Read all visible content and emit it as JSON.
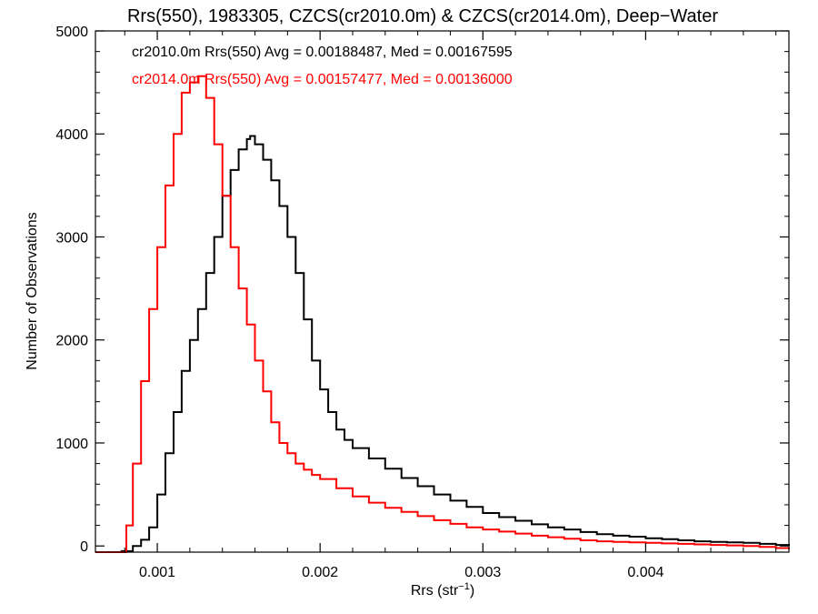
{
  "chart_data": {
    "type": "line",
    "title": "Rrs(550), 1983305, CZCS(cr2010.0m) & CZCS(cr2014.0m), Deep−Water",
    "xlabel": {
      "base": "Rrs (str",
      "sup": "−1",
      "close": ")"
    },
    "ylabel": "Number of Observations",
    "xlim": [
      0.00062,
      0.00488
    ],
    "ylim": [
      -60,
      5000
    ],
    "grid": false,
    "x_ticks": [
      {
        "value": 0.001,
        "label": "0.001"
      },
      {
        "value": 0.002,
        "label": "0.002"
      },
      {
        "value": 0.003,
        "label": "0.003"
      },
      {
        "value": 0.004,
        "label": "0.004"
      }
    ],
    "y_ticks": [
      {
        "value": 0,
        "label": "0"
      },
      {
        "value": 1000,
        "label": "1000"
      },
      {
        "value": 2000,
        "label": "2000"
      },
      {
        "value": 3000,
        "label": "3000"
      },
      {
        "value": 4000,
        "label": "4000"
      },
      {
        "value": 5000,
        "label": "5000"
      }
    ],
    "annotations": [
      {
        "text": "cr2010.0m Rrs(550) Avg = 0.00188487, Med = 0.00167595",
        "color": "#000000"
      },
      {
        "text": "cr2014.0m Rrs(550) Avg = 0.00157477, Med = 0.00136000",
        "color": "#ff0000"
      }
    ],
    "series": [
      {
        "color": "#000000",
        "x": [
          0.00062,
          0.00078,
          0.00085,
          0.0009,
          0.00095,
          0.001,
          0.00105,
          0.0011,
          0.00115,
          0.0012,
          0.00125,
          0.0013,
          0.00135,
          0.0014,
          0.00145,
          0.0015,
          0.00155,
          0.00157,
          0.0016,
          0.00165,
          0.0017,
          0.00175,
          0.0018,
          0.00185,
          0.0019,
          0.00195,
          0.002,
          0.00205,
          0.0021,
          0.00215,
          0.0022,
          0.0023,
          0.0024,
          0.0025,
          0.0026,
          0.0027,
          0.0028,
          0.0029,
          0.003,
          0.0031,
          0.0032,
          0.0033,
          0.0034,
          0.0035,
          0.0036,
          0.0037,
          0.0038,
          0.0039,
          0.004,
          0.0041,
          0.0042,
          0.0043,
          0.0044,
          0.0045,
          0.0046,
          0.0047,
          0.0048,
          0.00488
        ],
        "y": [
          -60,
          -50,
          0,
          60,
          180,
          500,
          900,
          1300,
          1700,
          2000,
          2300,
          2650,
          3000,
          3400,
          3650,
          3850,
          3950,
          3980,
          3900,
          3750,
          3550,
          3300,
          3000,
          2650,
          2200,
          1800,
          1520,
          1300,
          1130,
          1030,
          950,
          850,
          750,
          660,
          580,
          500,
          440,
          380,
          320,
          280,
          245,
          210,
          180,
          160,
          135,
          115,
          100,
          90,
          75,
          65,
          55,
          45,
          40,
          35,
          30,
          20,
          10,
          0
        ]
      },
      {
        "color": "#ff0000",
        "x": [
          0.00062,
          0.00075,
          0.00079,
          0.00081,
          0.00085,
          0.0009,
          0.00095,
          0.001,
          0.00105,
          0.0011,
          0.00115,
          0.0012,
          0.00125,
          0.0013,
          0.00135,
          0.0014,
          0.00145,
          0.0015,
          0.00155,
          0.0016,
          0.00165,
          0.0017,
          0.00175,
          0.0018,
          0.00185,
          0.0019,
          0.00195,
          0.002,
          0.0021,
          0.0022,
          0.0023,
          0.0024,
          0.0025,
          0.0026,
          0.0027,
          0.0028,
          0.0029,
          0.003,
          0.0031,
          0.0032,
          0.0033,
          0.0034,
          0.0035,
          0.0036,
          0.0037,
          0.0038,
          0.0039,
          0.004,
          0.0041,
          0.0042,
          0.0043,
          0.0044,
          0.0045,
          0.0046,
          0.0047,
          0.0048,
          0.00488
        ],
        "y": [
          -60,
          -60,
          -60,
          200,
          800,
          1600,
          2300,
          2900,
          3500,
          4000,
          4400,
          4500,
          4560,
          4350,
          3900,
          3400,
          2900,
          2500,
          2150,
          1800,
          1500,
          1200,
          1000,
          900,
          800,
          740,
          690,
          650,
          560,
          480,
          420,
          370,
          330,
          290,
          250,
          215,
          180,
          160,
          140,
          120,
          100,
          85,
          70,
          55,
          45,
          40,
          35,
          30,
          25,
          20,
          15,
          10,
          5,
          0,
          -10,
          -20,
          -30
        ]
      }
    ]
  }
}
